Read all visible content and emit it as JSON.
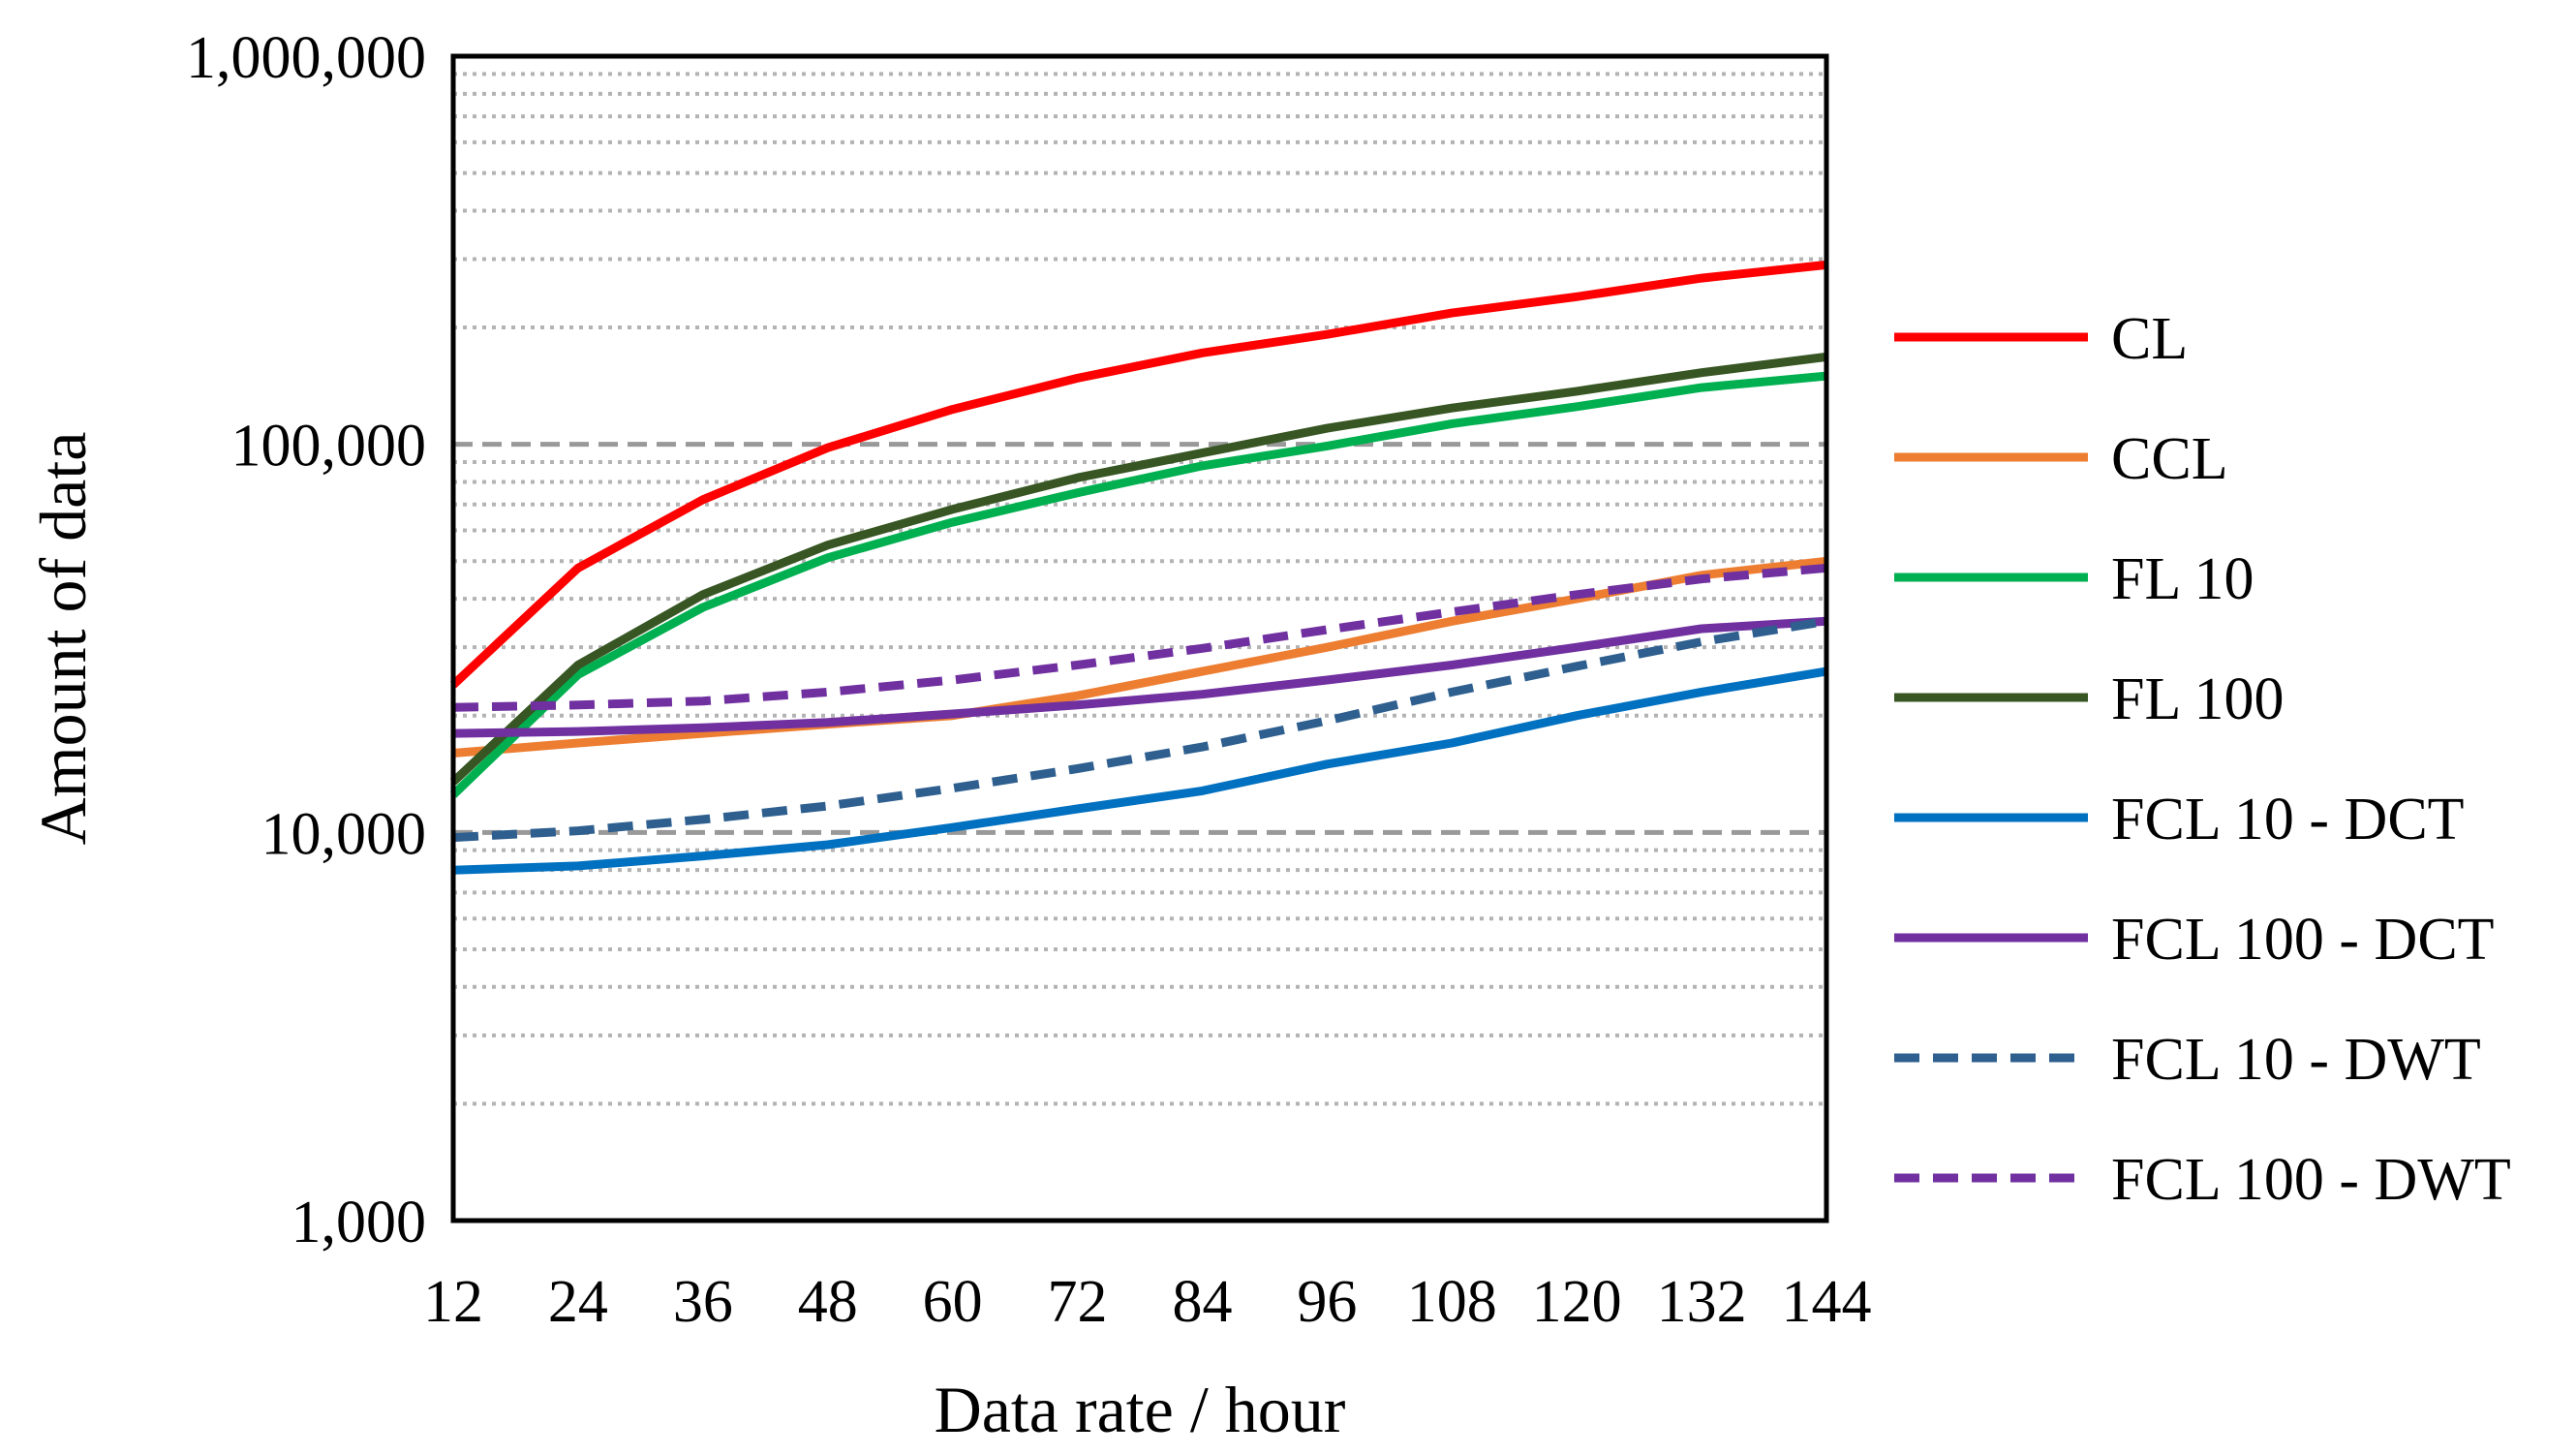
{
  "chart_data": {
    "type": "line",
    "title": "",
    "xlabel": "Data rate / hour",
    "ylabel": "Amount  of data",
    "yscale": "log",
    "ylim": [
      1000,
      1000000
    ],
    "x": [
      12,
      24,
      36,
      48,
      60,
      72,
      84,
      96,
      108,
      120,
      132,
      144
    ],
    "x_tick_labels": [
      "12",
      "24",
      "36",
      "48",
      "60",
      "72",
      "84",
      "96",
      "108",
      "120",
      "132",
      "144"
    ],
    "y_ticks": [
      1000,
      10000,
      100000,
      1000000
    ],
    "y_tick_labels": [
      "1,000",
      "10,000",
      "100,000",
      "1,000,000"
    ],
    "grid": "minor dotted, major dashed (horizontal)",
    "legend_position": "right",
    "series": [
      {
        "name": "CL",
        "color": "#ff0000",
        "dash": "solid",
        "values": [
          24000,
          48000,
          72000,
          98000,
          123000,
          148000,
          172000,
          192000,
          218000,
          240000,
          268000,
          290000
        ]
      },
      {
        "name": "CCL",
        "color": "#ed7d31",
        "dash": "solid",
        "values": [
          16000,
          17000,
          18000,
          19000,
          20000,
          22500,
          26000,
          30000,
          35000,
          40000,
          46000,
          50000
        ]
      },
      {
        "name": "FL 10",
        "color": "#00b050",
        "dash": "solid",
        "values": [
          12500,
          25500,
          38000,
          51000,
          63000,
          75000,
          88000,
          99000,
          113000,
          125000,
          140000,
          150000
        ]
      },
      {
        "name": "FL 100",
        "color": "#375623",
        "dash": "solid",
        "values": [
          13500,
          27000,
          41000,
          55000,
          68000,
          82000,
          95000,
          110000,
          124000,
          137000,
          153000,
          168000
        ]
      },
      {
        "name": "FCL 10 - DCT",
        "color": "#0070c0",
        "dash": "solid",
        "values": [
          8000,
          8200,
          8700,
          9300,
          10300,
          11500,
          12800,
          15000,
          17000,
          20000,
          23000,
          26000
        ]
      },
      {
        "name": "FCL 100 - DCT",
        "color": "#7030a0",
        "dash": "solid",
        "values": [
          18000,
          18200,
          18600,
          19200,
          20200,
          21300,
          22700,
          24700,
          27000,
          30000,
          33500,
          35000
        ]
      },
      {
        "name": "FCL 10 - DWT",
        "color": "#2e5f8f",
        "dash": "dashed",
        "values": [
          9700,
          10100,
          10800,
          11700,
          13000,
          14600,
          16600,
          19400,
          23000,
          26800,
          31000,
          35000
        ]
      },
      {
        "name": "FCL 100 - DWT",
        "color": "#7030a0",
        "dash": "dashed",
        "values": [
          21000,
          21300,
          21800,
          23000,
          24700,
          27000,
          29800,
          33300,
          37000,
          41000,
          45000,
          48000
        ]
      }
    ]
  }
}
